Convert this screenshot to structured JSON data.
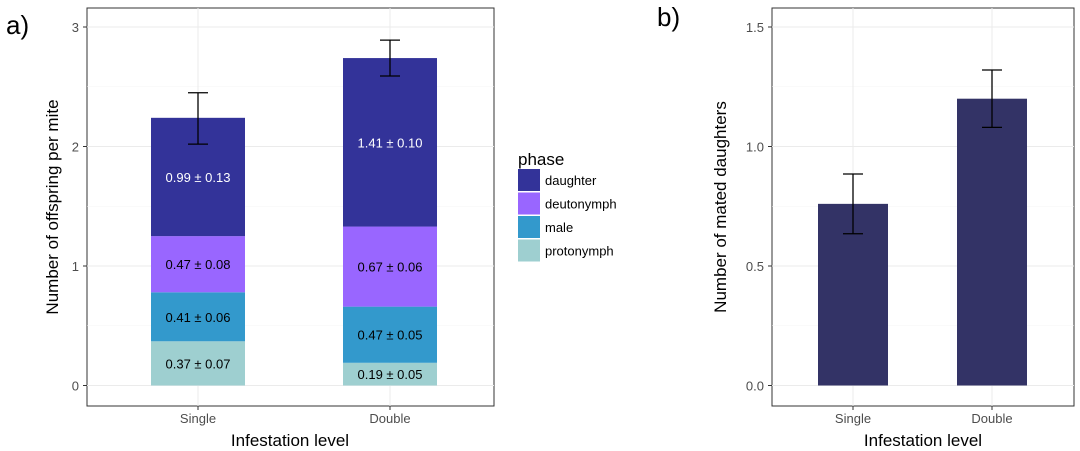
{
  "panel_a_label": "a)",
  "panel_b_label": "b)",
  "chart_data": [
    {
      "type": "bar",
      "stacked": true,
      "categories": [
        "Single",
        "Double"
      ],
      "xlabel": "Infestation level",
      "ylabel": "Number of offspring per mite",
      "ylim": [
        0,
        3
      ],
      "yticks": [
        "0",
        "1",
        "2",
        "3"
      ],
      "grid": true,
      "legend": {
        "title": "phase",
        "position": "right"
      },
      "series": [
        {
          "name": "protonymph",
          "color": "#9ecfd0",
          "values": [
            0.37,
            0.19
          ],
          "errors": [
            0.07,
            0.05
          ],
          "labels": [
            "0.37 ± 0.07",
            "0.19 ± 0.05"
          ],
          "label_color": "#000000"
        },
        {
          "name": "male",
          "color": "#3399cc",
          "values": [
            0.41,
            0.47
          ],
          "errors": [
            0.06,
            0.05
          ],
          "labels": [
            "0.41 ± 0.06",
            "0.47 ± 0.05"
          ],
          "label_color": "#000000"
        },
        {
          "name": "deutonymph",
          "color": "#9966ff",
          "values": [
            0.47,
            0.67
          ],
          "errors": [
            0.08,
            0.06
          ],
          "labels": [
            "0.47 ± 0.08",
            "0.67 ± 0.06"
          ],
          "label_color": "#000000"
        },
        {
          "name": "daughter",
          "color": "#333399",
          "values": [
            0.99,
            1.41
          ],
          "errors": [
            0.13,
            0.1
          ],
          "labels": [
            "0.99 ± 0.13",
            "1.41 ± 0.10"
          ],
          "label_color": "#ffffff"
        }
      ],
      "legend_order": [
        "daughter",
        "deutonymph",
        "male",
        "protonymph"
      ],
      "totals": [
        2.23,
        2.74
      ],
      "total_error_bars": [
        [
          2.02,
          2.45
        ],
        [
          2.59,
          2.89
        ]
      ]
    },
    {
      "type": "bar",
      "categories": [
        "Single",
        "Double"
      ],
      "xlabel": "Infestation level",
      "ylabel": "Number of mated daughters",
      "ylim": [
        0,
        1.6
      ],
      "yticks": [
        "0.0",
        "0.5",
        "1.0",
        "1.5"
      ],
      "grid": true,
      "color": "#333366",
      "values": [
        0.76,
        1.2
      ],
      "error_bars": [
        [
          0.635,
          0.885
        ],
        [
          1.08,
          1.32
        ]
      ]
    }
  ]
}
